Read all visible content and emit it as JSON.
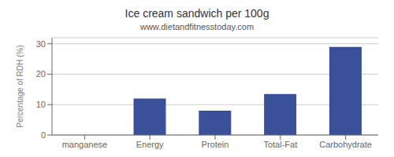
{
  "chart_data": {
    "type": "bar",
    "title": "Ice cream sandwich per 100g",
    "subtitle": "www.dietandfitnesstoday.com",
    "categories": [
      "manganese",
      "Energy",
      "Protein",
      "Total-Fat",
      "Carbohydrate"
    ],
    "values": [
      0,
      12,
      8,
      13.5,
      29
    ],
    "color": "#3a5199",
    "ylabel": "Percentage of RDH (%)",
    "ylim": [
      0,
      32
    ],
    "yticks": [
      0,
      10,
      20,
      30
    ],
    "grid": true
  }
}
